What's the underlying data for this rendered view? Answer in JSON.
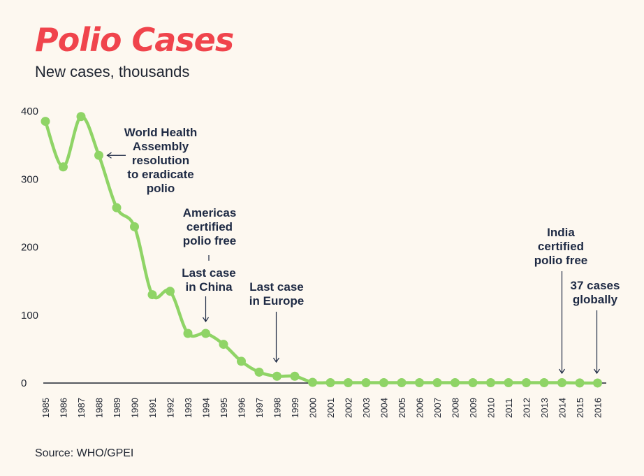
{
  "header": {
    "title": "Polio Cases",
    "subtitle": "New cases, thousands"
  },
  "footer": {
    "source": "Source: WHO/GPEI"
  },
  "colors": {
    "title": "#f0444c",
    "line": "#8fd466",
    "text": "#1e2430",
    "annotation": "#1e2a44",
    "background": "#fdf8f0"
  },
  "chart_data": {
    "type": "line",
    "x": [
      "1985",
      "1986",
      "1987",
      "1988",
      "1989",
      "1990",
      "1991",
      "1992",
      "1993",
      "1994",
      "1995",
      "1996",
      "1997",
      "1998",
      "1999",
      "2000",
      "2001",
      "2002",
      "2003",
      "2004",
      "2005",
      "2006",
      "2007",
      "2008",
      "2009",
      "2010",
      "2011",
      "2012",
      "2013",
      "2014",
      "2015",
      "2016"
    ],
    "series": [
      {
        "values": [
          385,
          318,
          392,
          335,
          258,
          230,
          130,
          135,
          73,
          73,
          57,
          32,
          16,
          10,
          10,
          1,
          0.5,
          0.5,
          0.5,
          0.5,
          0.5,
          0.5,
          0.5,
          0.5,
          0.5,
          0.5,
          0.5,
          0.5,
          0.5,
          0.5,
          0.1,
          0.04
        ]
      }
    ],
    "y_ticks": [
      "0",
      "100",
      "200",
      "300",
      "400"
    ],
    "ylim": [
      0,
      400
    ],
    "grid": false,
    "annotations": [
      {
        "x": "1988",
        "lines": [
          "World Health",
          "Assembly",
          "resolution",
          "to eradicate",
          "polio"
        ],
        "arrow": "left"
      },
      {
        "x": "1994",
        "lines": [
          "Americas",
          "certified",
          "polio free"
        ],
        "arrow": "down"
      },
      {
        "x": "1994",
        "lines": [
          "Last case",
          "in China"
        ],
        "arrow": "down"
      },
      {
        "x": "1998",
        "lines": [
          "Last case",
          "in Europe"
        ],
        "arrow": "down"
      },
      {
        "x": "2014",
        "lines": [
          "India",
          "certified",
          "polio free"
        ],
        "arrow": "down"
      },
      {
        "x": "2016",
        "lines": [
          "37 cases",
          "globally"
        ],
        "arrow": "down"
      }
    ]
  }
}
